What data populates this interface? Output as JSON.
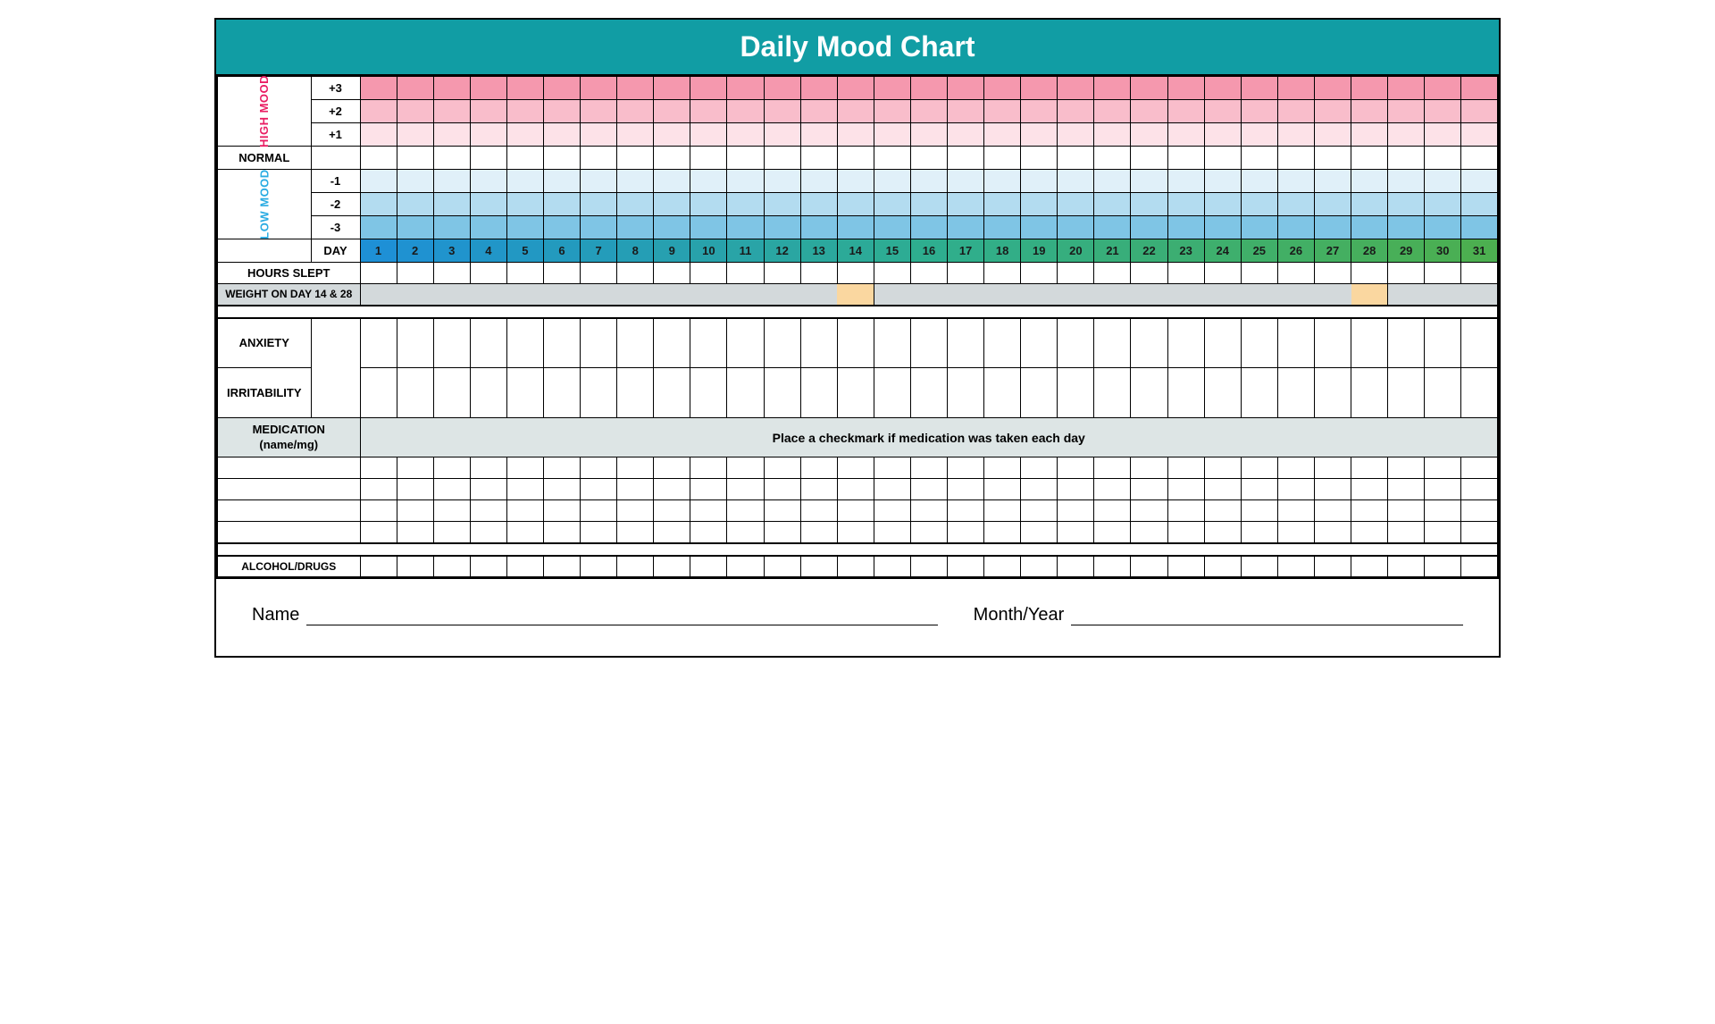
{
  "title": "Daily Mood Chart",
  "sections": {
    "high_mood": "HIGH MOOD",
    "normal": "NORMAL",
    "low_mood": "LOW MOOD",
    "day": "DAY",
    "hours_slept": "HOURS SLEPT",
    "weight": "WEIGHT ON DAY 14 & 28",
    "anxiety": "ANXIETY",
    "irritability": "IRRITABILITY",
    "medication": "MEDICATION",
    "medication_sub": "(name/mg)",
    "medication_note": "Place a checkmark if medication was taken each day",
    "alcohol": "ALCOHOL/DRUGS",
    "name": "Name",
    "month_year": "Month/Year"
  },
  "mood_levels": {
    "high": [
      "+3",
      "+2",
      "+1"
    ],
    "low": [
      "-1",
      "-2",
      "-3"
    ]
  },
  "days": [
    "1",
    "2",
    "3",
    "4",
    "5",
    "6",
    "7",
    "8",
    "9",
    "10",
    "11",
    "12",
    "13",
    "14",
    "15",
    "16",
    "17",
    "18",
    "19",
    "20",
    "21",
    "22",
    "23",
    "24",
    "25",
    "26",
    "27",
    "28",
    "29",
    "30",
    "31"
  ],
  "weight_highlight_days": [
    14,
    28
  ],
  "colors": {
    "title_bg": "#119DA4",
    "high_mood_text": "#E91E63",
    "low_mood_text": "#29ABE2",
    "high_rows": [
      "#F598AE",
      "#F9BDCB",
      "#FDE2E8"
    ],
    "low_rows": [
      "#E0F0F9",
      "#B3DCF0",
      "#7FC5E5"
    ],
    "day_gradient_start": "#1E90D6",
    "day_gradient_mid": "#2EAE8F",
    "day_gradient_end": "#4CAF50",
    "medication_bg": "#DDE5E5",
    "weight_bg": "#D3D9DB",
    "weight_highlight": "#FAD7A0"
  },
  "layout": {
    "num_days": 31,
    "medication_rows": 4
  }
}
